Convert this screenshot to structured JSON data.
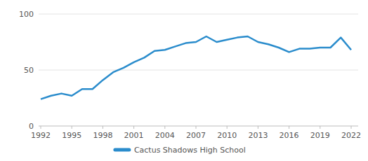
{
  "chart_data": {
    "type": "line",
    "x": [
      1992,
      1993,
      1994,
      1995,
      1996,
      1997,
      1998,
      1999,
      2000,
      2001,
      2002,
      2003,
      2004,
      2005,
      2006,
      2007,
      2008,
      2009,
      2010,
      2011,
      2012,
      2013,
      2014,
      2015,
      2016,
      2017,
      2018,
      2019,
      2020,
      2021,
      2022
    ],
    "series": [
      {
        "name": "Cactus Shadows High School",
        "color": "#2a8ccc",
        "values": [
          24,
          27,
          29,
          27,
          33,
          33,
          41,
          48,
          52,
          57,
          61,
          67,
          68,
          71,
          74,
          75,
          80,
          75,
          77,
          79,
          80,
          75,
          73,
          70,
          66,
          69,
          69,
          70,
          70,
          79,
          68
        ]
      }
    ],
    "xlim": [
      1992,
      2022
    ],
    "xticks": [
      1992,
      1995,
      1998,
      2001,
      2004,
      2007,
      2010,
      2013,
      2016,
      2019,
      2022
    ],
    "ylim": [
      0,
      100
    ],
    "yticks": [
      0,
      50,
      100
    ],
    "grid": true,
    "legend": "bottom"
  }
}
